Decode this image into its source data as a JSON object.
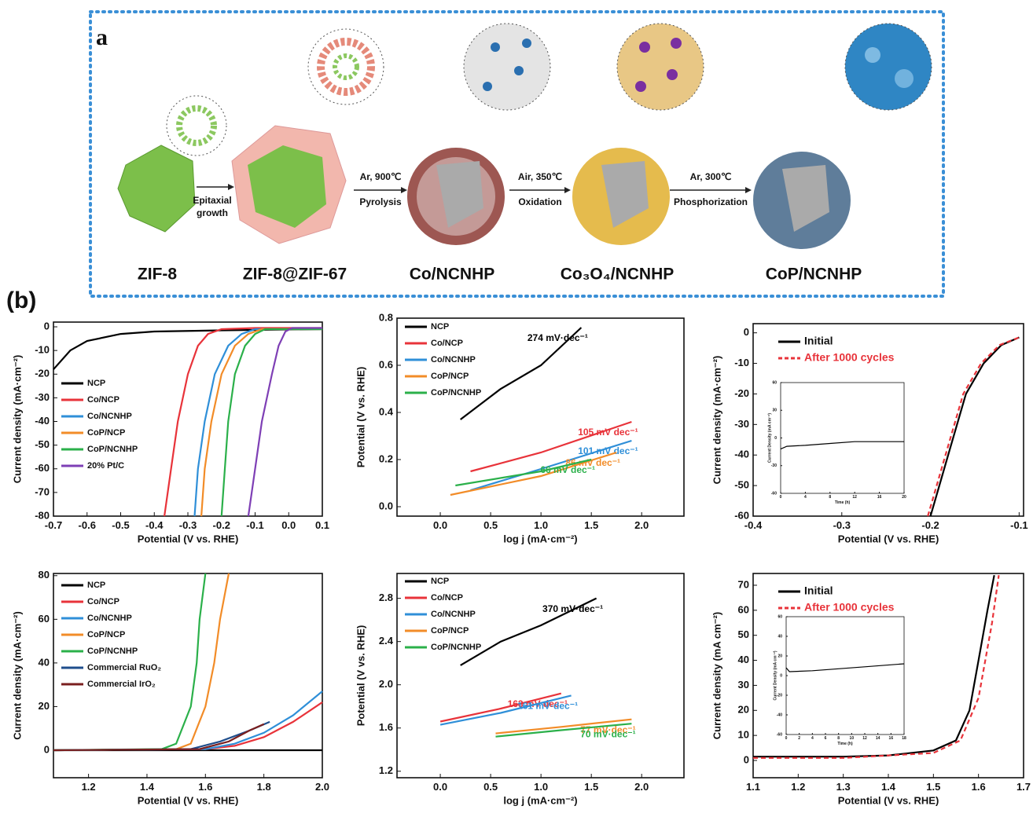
{
  "schematic": {
    "panel_label": "a",
    "labels": [
      "ZIF-8",
      "ZIF-8@ZIF-67",
      "Co/NCNHP",
      "Co₃O₄/NCNHP",
      "CoP/NCNHP"
    ],
    "steps": [
      [
        "Epitaxial",
        "growth"
      ],
      [
        "Ar, 900℃",
        "Pyrolysis"
      ],
      [
        "Air, 350℃",
        "Oxidation"
      ],
      [
        "Ar, 300℃",
        "Phosphorization"
      ]
    ]
  },
  "figure_label": "(b)",
  "chart_data": [
    {
      "type": "line",
      "x_label": "Potential (V vs. RHE)",
      "y_label": "Current density (mA·cm⁻²)",
      "xlim": [
        -0.7,
        0.1
      ],
      "xticks": [
        -0.7,
        -0.6,
        -0.5,
        -0.4,
        -0.3,
        -0.2,
        -0.1,
        {
          "value": 0,
          "label": "0.0"
        },
        0.1
      ],
      "ylim": [
        -80,
        2
      ],
      "yticks": [
        0,
        -10,
        -20,
        -30,
        -40,
        -50,
        -60,
        -70,
        -80
      ],
      "series": [
        {
          "name": "NCP",
          "color": "#000000",
          "x": [
            -0.7,
            -0.65,
            -0.6,
            -0.5,
            -0.4,
            -0.2,
            0.1
          ],
          "values": [
            -18,
            -10,
            -6,
            -3,
            -2,
            -1.5,
            -1
          ]
        },
        {
          "name": "Co/NCP",
          "color": "#e8333a",
          "x": [
            -0.37,
            -0.35,
            -0.33,
            -0.3,
            -0.27,
            -0.24,
            -0.2,
            -0.1,
            0.1
          ],
          "values": [
            -80,
            -60,
            -40,
            -20,
            -8,
            -3,
            -1,
            -0.5,
            -0.5
          ]
        },
        {
          "name": "Co/NCNHP",
          "color": "#2f8fd8",
          "x": [
            -0.28,
            -0.27,
            -0.25,
            -0.22,
            -0.18,
            -0.14,
            -0.1,
            0.1
          ],
          "values": [
            -80,
            -60,
            -40,
            -20,
            -8,
            -3,
            -1,
            -1
          ]
        },
        {
          "name": "CoP/NCP",
          "color": "#f28c28",
          "x": [
            -0.26,
            -0.25,
            -0.23,
            -0.2,
            -0.16,
            -0.12,
            -0.08,
            0.1
          ],
          "values": [
            -80,
            -60,
            -40,
            -20,
            -8,
            -3,
            -1,
            -1
          ]
        },
        {
          "name": "CoP/NCNHP",
          "color": "#2bb04a",
          "x": [
            -0.2,
            -0.19,
            -0.18,
            -0.16,
            -0.13,
            -0.1,
            -0.07,
            0.1
          ],
          "values": [
            -80,
            -60,
            -40,
            -20,
            -8,
            -3,
            -1,
            -1
          ]
        },
        {
          "name": "20% Pt/C",
          "color": "#7e3fb5",
          "x": [
            -0.12,
            -0.1,
            -0.08,
            -0.05,
            -0.03,
            -0.01,
            0.01,
            0.1
          ],
          "values": [
            -80,
            -60,
            -40,
            -20,
            -8,
            -2,
            -0.5,
            -0.5
          ]
        }
      ]
    },
    {
      "type": "line",
      "x_label": "log j (mA·cm⁻²)",
      "y_label": "Potential (V vs. RHE)",
      "xlim": [
        -0.43,
        2.42
      ],
      "xticks": [
        {
          "value": 0,
          "label": "0.0"
        },
        0.5,
        {
          "value": 1,
          "label": "1.0"
        },
        1.5,
        {
          "value": 2,
          "label": "2.0"
        }
      ],
      "ylim": [
        -0.04,
        0.8
      ],
      "yticks": [
        {
          "value": 0,
          "label": "0.0"
        },
        0.2,
        0.4,
        0.6,
        0.8
      ],
      "series": [
        {
          "name": "NCP",
          "color": "#000000",
          "x": [
            0.2,
            0.6,
            1.0,
            1.4
          ],
          "values": [
            0.37,
            0.5,
            0.6,
            0.76
          ],
          "label": "274 mV·dec⁻¹"
        },
        {
          "name": "Co/NCP",
          "color": "#e8333a",
          "x": [
            0.3,
            1.0,
            1.9
          ],
          "values": [
            0.15,
            0.23,
            0.36
          ],
          "label": "105 mV dec⁻¹"
        },
        {
          "name": "Co/NCNHP",
          "color": "#2f8fd8",
          "x": [
            0.3,
            1.0,
            1.9
          ],
          "values": [
            0.07,
            0.16,
            0.28
          ],
          "label": "101 mV dec⁻¹"
        },
        {
          "name": "CoP/NCP",
          "color": "#f28c28",
          "x": [
            0.1,
            1.0,
            1.75
          ],
          "values": [
            0.05,
            0.13,
            0.23
          ],
          "label": "86 mV dec⁻¹"
        },
        {
          "name": "CoP/NCNHP",
          "color": "#2bb04a",
          "x": [
            0.15,
            1.0,
            1.5
          ],
          "values": [
            0.09,
            0.15,
            0.2
          ],
          "label": "66 mV dec⁻¹"
        }
      ]
    },
    {
      "type": "line",
      "x_label": "Potential (V vs. RHE)",
      "y_label": "Current density (mA·cm⁻²)",
      "xlim": [
        -0.4,
        -0.095
      ],
      "xticks": [
        -0.4,
        -0.3,
        -0.2,
        -0.1
      ],
      "ylim": [
        -60,
        3
      ],
      "yticks": [
        0,
        -10,
        -20,
        -30,
        -40,
        -50,
        -60
      ],
      "series": [
        {
          "name": "Initial",
          "color": "#000000",
          "dashed": false,
          "x": [
            -0.2,
            -0.19,
            -0.18,
            -0.17,
            -0.16,
            -0.14,
            -0.12,
            -0.1
          ],
          "values": [
            -60,
            -50,
            -40,
            -30,
            -20,
            -10,
            -4,
            -1.5
          ]
        },
        {
          "name": "After 1000 cycles",
          "color": "#e8333a",
          "dashed": true,
          "x": [
            -0.203,
            -0.193,
            -0.183,
            -0.173,
            -0.163,
            -0.143,
            -0.122,
            -0.1
          ],
          "values": [
            -60,
            -50,
            -40,
            -30,
            -20,
            -10,
            -4,
            -1.5
          ]
        }
      ],
      "inset": {
        "x_label": "Time (h)",
        "y_label": "Current Density (mA cm⁻²)",
        "xlim": [
          0,
          20
        ],
        "xticks": [
          0,
          4,
          8,
          12,
          16,
          20
        ],
        "ylim": [
          -60,
          60
        ],
        "yticks": [
          60,
          30,
          0,
          -30,
          -60
        ],
        "color": "#000000",
        "x": [
          0,
          1,
          4,
          8,
          12,
          16,
          20
        ],
        "values": [
          -12,
          -9,
          -8,
          -6,
          -4,
          -4,
          -4
        ]
      }
    },
    {
      "type": "line",
      "x_label": "Potential (V vs. RHE)",
      "y_label": "Current density (mA·cm⁻²)",
      "xlim": [
        1.08,
        2.0
      ],
      "xticks": [
        1.2,
        1.4,
        1.6,
        1.8,
        {
          "value": 2,
          "label": "2.0"
        }
      ],
      "ylim": [
        -12.6,
        81
      ],
      "yticks": [
        0,
        20,
        40,
        60,
        80
      ],
      "series": [
        {
          "name": "NCP",
          "color": "#000000",
          "x": [
            1.08,
            2.0
          ],
          "values": [
            0,
            0
          ]
        },
        {
          "name": "Co/NCP",
          "color": "#e8333a",
          "x": [
            1.08,
            1.6,
            1.7,
            1.8,
            1.9,
            2.0
          ],
          "values": [
            0,
            0.5,
            2,
            6,
            13,
            22
          ]
        },
        {
          "name": "Co/NCNHP",
          "color": "#2f8fd8",
          "x": [
            1.08,
            1.6,
            1.7,
            1.8,
            1.9,
            2.0
          ],
          "values": [
            0,
            0.5,
            3,
            8,
            16,
            27
          ]
        },
        {
          "name": "CoP/NCP",
          "color": "#f28c28",
          "x": [
            1.08,
            1.5,
            1.55,
            1.6,
            1.63,
            1.65,
            1.68
          ],
          "values": [
            0,
            0.5,
            3,
            20,
            40,
            60,
            81
          ]
        },
        {
          "name": "CoP/NCNHP",
          "color": "#2bb04a",
          "x": [
            1.08,
            1.45,
            1.5,
            1.55,
            1.57,
            1.58,
            1.6
          ],
          "values": [
            0,
            0.5,
            3,
            20,
            40,
            60,
            81
          ]
        },
        {
          "name": "Commercial RuO₂",
          "color": "#1f4e8c",
          "x": [
            1.08,
            1.55,
            1.65,
            1.75,
            1.82
          ],
          "values": [
            0,
            0.5,
            4,
            9,
            13
          ]
        },
        {
          "name": "Commercial IrO₂",
          "color": "#7a1f1f",
          "x": [
            1.08,
            1.58,
            1.68,
            1.75,
            1.8
          ],
          "values": [
            0,
            0.5,
            4,
            9,
            12
          ]
        }
      ]
    },
    {
      "type": "line",
      "x_label": "log j (mA·cm⁻²)",
      "y_label": "Potential (V vs. RHE)",
      "xlim": [
        -0.43,
        2.42
      ],
      "xticks": [
        {
          "value": 0,
          "label": "0.0"
        },
        0.5,
        {
          "value": 1,
          "label": "1.0"
        },
        1.5,
        {
          "value": 2,
          "label": "2.0"
        }
      ],
      "ylim": [
        1.14,
        3.03
      ],
      "yticks": [
        1.2,
        1.6,
        {
          "value": 2,
          "label": "2.0"
        },
        2.4,
        2.8
      ],
      "series": [
        {
          "name": "NCP",
          "color": "#000000",
          "x": [
            0.2,
            0.6,
            1.0,
            1.55
          ],
          "values": [
            2.18,
            2.4,
            2.55,
            2.8
          ],
          "label": "370 mV·dec⁻¹"
        },
        {
          "name": "Co/NCP",
          "color": "#e8333a",
          "x": [
            0,
            0.6,
            1.2
          ],
          "values": [
            1.66,
            1.78,
            1.92
          ],
          "label": "163 mV dec⁻¹"
        },
        {
          "name": "Co/NCNHP",
          "color": "#2f8fd8",
          "x": [
            0,
            0.6,
            1.3
          ],
          "values": [
            1.63,
            1.74,
            1.9
          ],
          "label": "161 mV·dec⁻¹"
        },
        {
          "name": "CoP/NCP",
          "color": "#f28c28",
          "x": [
            0.55,
            1.2,
            1.9
          ],
          "values": [
            1.55,
            1.61,
            1.68
          ],
          "label": "77 mV·dec⁻¹"
        },
        {
          "name": "CoP/NCNHP",
          "color": "#2bb04a",
          "x": [
            0.55,
            1.2,
            1.9
          ],
          "values": [
            1.52,
            1.58,
            1.64
          ],
          "label": "70 mV·dec⁻¹"
        }
      ]
    },
    {
      "type": "line",
      "x_label": "Potential (V vs. RHE)",
      "y_label": "Current density (mA cm⁻²)",
      "xlim": [
        1.1,
        1.7
      ],
      "xticks": [
        1.1,
        1.2,
        1.3,
        1.4,
        1.5,
        1.6,
        1.7
      ],
      "ylim": [
        -6.9,
        74.7
      ],
      "yticks": [
        0,
        10,
        20,
        30,
        40,
        50,
        60,
        70
      ],
      "series": [
        {
          "name": "Initial",
          "color": "#000000",
          "dashed": false,
          "x": [
            1.1,
            1.3,
            1.4,
            1.5,
            1.55,
            1.58,
            1.6,
            1.62,
            1.635
          ],
          "values": [
            1.5,
            1.5,
            2,
            4,
            8,
            20,
            40,
            60,
            74
          ]
        },
        {
          "name": "After 1000 cycles",
          "color": "#e8333a",
          "dashed": true,
          "x": [
            1.1,
            1.3,
            1.5,
            1.56,
            1.6,
            1.63,
            1.645
          ],
          "values": [
            1,
            1,
            3,
            8,
            25,
            55,
            74
          ]
        }
      ],
      "inset": {
        "x_label": "Time (h)",
        "y_label": "Current Density (mA cm⁻²)",
        "xlim": [
          0,
          18
        ],
        "xticks": [
          0,
          2,
          4,
          6,
          8,
          10,
          12,
          14,
          16,
          18
        ],
        "ylim": [
          -60,
          60
        ],
        "yticks": [
          60,
          40,
          20,
          0,
          -20,
          -40,
          -60
        ],
        "color": "#000000",
        "x": [
          0,
          0.5,
          4,
          8,
          12,
          18
        ],
        "values": [
          8,
          4,
          5,
          7,
          9,
          12
        ]
      }
    }
  ]
}
